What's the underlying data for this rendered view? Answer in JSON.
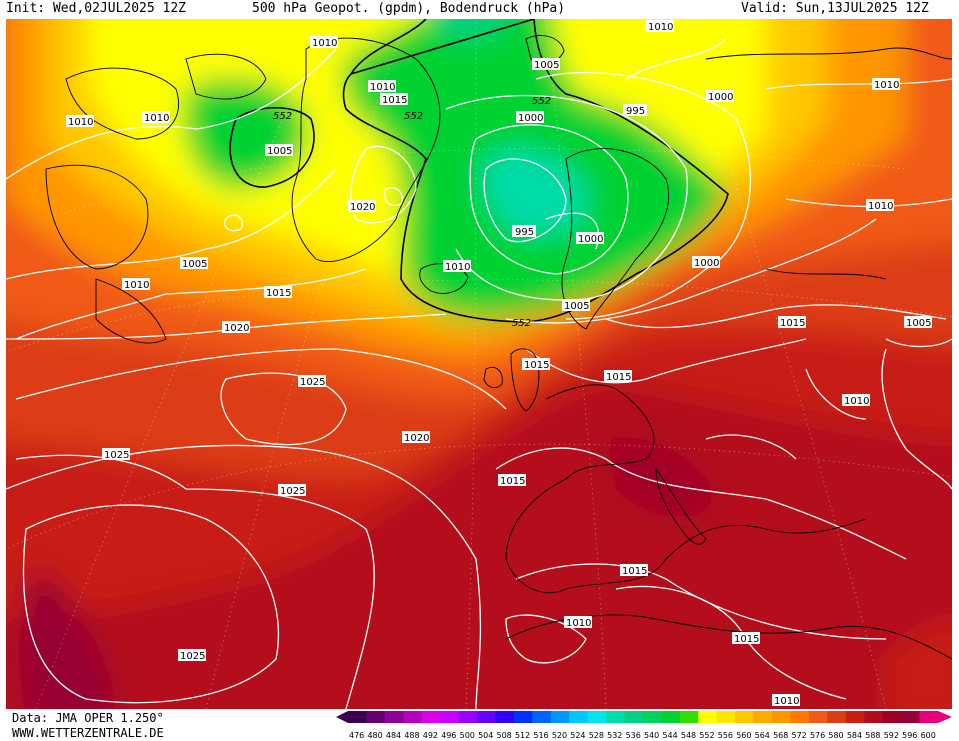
{
  "header": {
    "init": "Init: Wed,02JUL2025 12Z",
    "title": "500 hPa Geopot. (gpdm), Bodendruck (hPa)",
    "valid": "Valid: Sun,13JUL2025 12Z"
  },
  "footer": {
    "data_source": "Data: JMA OPER 1.250°",
    "website": "WWW.WETTERZENTRALE.DE"
  },
  "legend": {
    "values": [
      "476",
      "480",
      "484",
      "488",
      "492",
      "496",
      "500",
      "504",
      "508",
      "512",
      "516",
      "520",
      "524",
      "528",
      "532",
      "536",
      "540",
      "544",
      "548",
      "552",
      "556",
      "560",
      "564",
      "568",
      "572",
      "576",
      "580",
      "584",
      "588",
      "592",
      "596",
      "600"
    ],
    "colors": [
      "#3c0050",
      "#64006e",
      "#8c0096",
      "#b400be",
      "#dc00e6",
      "#c800ff",
      "#9600ff",
      "#6400ff",
      "#3200ff",
      "#0032ff",
      "#0064ff",
      "#0096ff",
      "#00c8ff",
      "#00e6e6",
      "#00dcaa",
      "#00d282",
      "#00d25a",
      "#00d232",
      "#32dc00",
      "#ffff00",
      "#ffe600",
      "#ffc800",
      "#ffaa00",
      "#ff9600",
      "#ff7800",
      "#f05a14",
      "#dc3c14",
      "#c81e14",
      "#b40a1e",
      "#a00028",
      "#960032",
      "#e6007e"
    ]
  },
  "isobar_labels": [
    "1010",
    "1010",
    "1010",
    "1005",
    "1005",
    "1010",
    "1015",
    "1015",
    "1020",
    "1005",
    "1010",
    "1000",
    "995",
    "1000",
    "1010",
    "995",
    "1000",
    "1005",
    "1010",
    "1015",
    "1015",
    "1020",
    "1025",
    "1020",
    "1025",
    "1025",
    "1015",
    "1015",
    "1015",
    "1015",
    "1010",
    "1010",
    "1025",
    "1005",
    "1010",
    "1000",
    "1010",
    "1010",
    "1015",
    "1005",
    "1010"
  ],
  "geopotential_labels": [
    "552",
    "552",
    "552",
    "552"
  ]
}
